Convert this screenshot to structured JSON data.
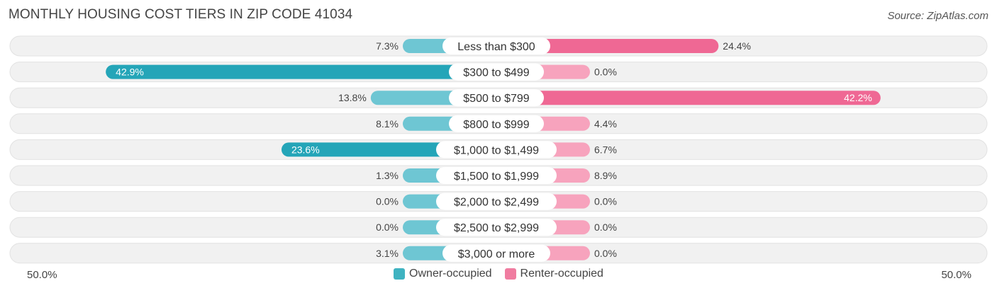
{
  "title": "MONTHLY HOUSING COST TIERS IN ZIP CODE 41034",
  "source": "Source: ZipAtlas.com",
  "axis": {
    "left_label": "50.0%",
    "right_label": "50.0%"
  },
  "legend": [
    {
      "label": "Owner-occupied",
      "color": "#4fb8c6"
    },
    {
      "label": "Renter-occupied",
      "color": "#f07ca0"
    }
  ],
  "chart_data": {
    "type": "bar",
    "orientation": "horizontal-diverging",
    "xlim": [
      -50,
      50
    ],
    "categories": [
      "Less than $300",
      "$300 to $499",
      "$500 to $799",
      "$800 to $999",
      "$1,000 to $1,499",
      "$1,500 to $1,999",
      "$2,000 to $2,499",
      "$2,500 to $2,999",
      "$3,000 or more"
    ],
    "series": [
      {
        "name": "Owner-occupied",
        "values": [
          7.3,
          42.9,
          13.8,
          8.1,
          23.6,
          1.3,
          0.0,
          0.0,
          3.1
        ],
        "labels": [
          "7.3%",
          "42.9%",
          "13.8%",
          "8.1%",
          "23.6%",
          "1.3%",
          "0.0%",
          "0.0%",
          "3.1%"
        ]
      },
      {
        "name": "Renter-occupied",
        "values": [
          24.4,
          0.0,
          42.2,
          4.4,
          6.7,
          8.9,
          0.0,
          0.0,
          0.0
        ],
        "labels": [
          "24.4%",
          "0.0%",
          "42.2%",
          "4.4%",
          "6.7%",
          "8.9%",
          "0.0%",
          "0.0%",
          "0.0%"
        ]
      }
    ]
  }
}
